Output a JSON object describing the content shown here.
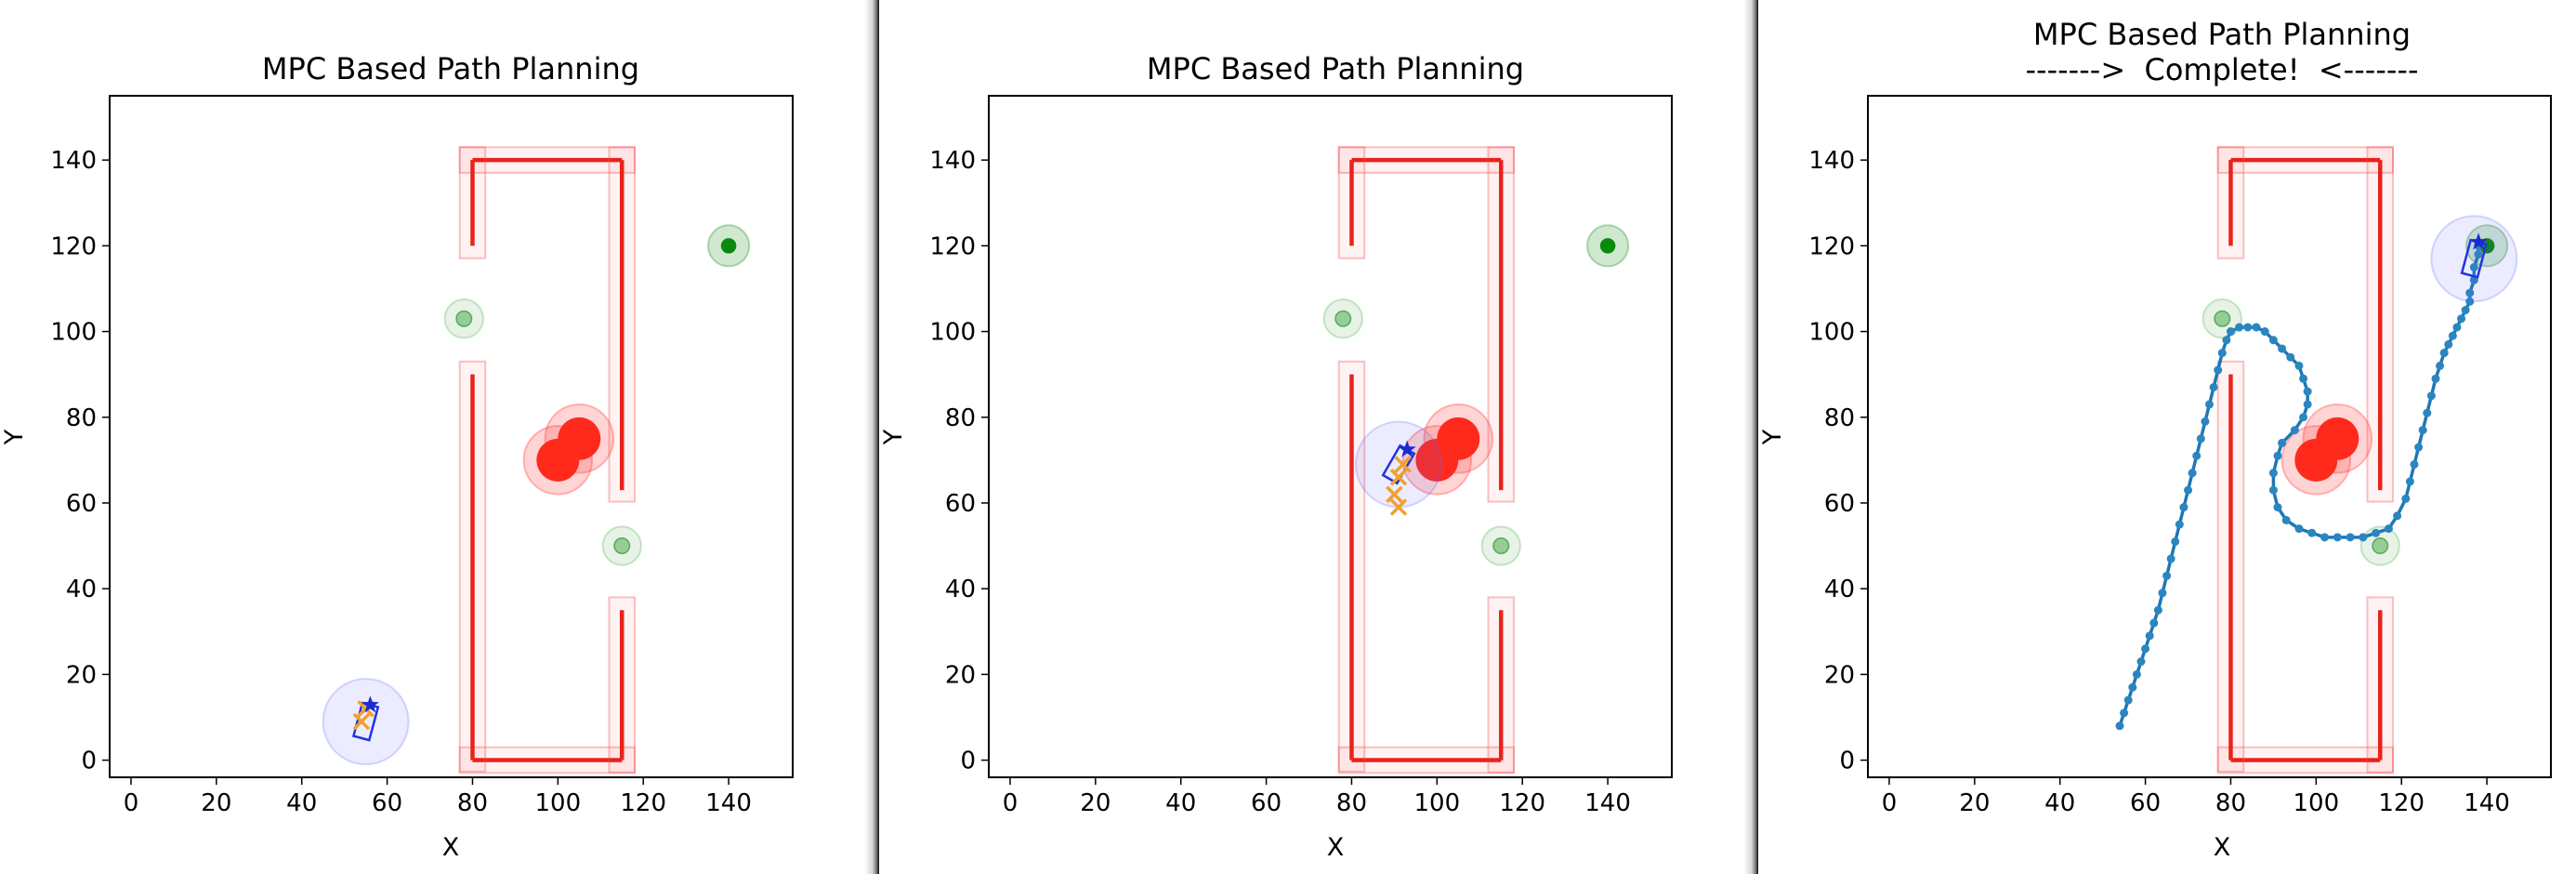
{
  "chart_data": [
    {
      "type": "scatter",
      "title": "MPC Based Path Planning",
      "subtitle": "",
      "xlabel": "X",
      "ylabel": "Y",
      "xlim": [
        -5,
        155
      ],
      "ylim": [
        -4,
        155
      ],
      "xticks": [
        0,
        20,
        40,
        60,
        80,
        100,
        120,
        140
      ],
      "yticks": [
        0,
        20,
        40,
        60,
        80,
        100,
        120,
        140
      ],
      "grid": false,
      "walls": [
        [
          [
            80,
            0
          ],
          [
            115,
            0
          ]
        ],
        [
          [
            80,
            0
          ],
          [
            80,
            90
          ]
        ],
        [
          [
            115,
            0
          ],
          [
            115,
            35
          ]
        ],
        [
          [
            80,
            140
          ],
          [
            115,
            140
          ]
        ],
        [
          [
            80,
            120
          ],
          [
            80,
            140
          ]
        ],
        [
          [
            115,
            63
          ],
          [
            115,
            140
          ]
        ]
      ],
      "goal": {
        "x": 140,
        "y": 120
      },
      "static_obstacles": [
        {
          "x": 78,
          "y": 103
        },
        {
          "x": 115,
          "y": 50
        }
      ],
      "dynamic_obstacles": [
        {
          "x": 100,
          "y": 70
        },
        {
          "x": 105,
          "y": 75
        }
      ],
      "robot": {
        "x": 55,
        "y": 9,
        "heading_deg": 75
      },
      "predicted_marks": [
        {
          "x": 55,
          "y": 12
        },
        {
          "x": 54,
          "y": 9
        }
      ],
      "trajectory": []
    },
    {
      "type": "scatter",
      "title": "MPC Based Path Planning",
      "subtitle": "",
      "xlabel": "X",
      "ylabel": "Y",
      "xlim": [
        -5,
        155
      ],
      "ylim": [
        -4,
        155
      ],
      "xticks": [
        0,
        20,
        40,
        60,
        80,
        100,
        120,
        140
      ],
      "yticks": [
        0,
        20,
        40,
        60,
        80,
        100,
        120,
        140
      ],
      "grid": false,
      "walls": [
        [
          [
            80,
            0
          ],
          [
            115,
            0
          ]
        ],
        [
          [
            80,
            0
          ],
          [
            80,
            90
          ]
        ],
        [
          [
            115,
            0
          ],
          [
            115,
            35
          ]
        ],
        [
          [
            80,
            140
          ],
          [
            115,
            140
          ]
        ],
        [
          [
            80,
            120
          ],
          [
            80,
            140
          ]
        ],
        [
          [
            115,
            63
          ],
          [
            115,
            140
          ]
        ]
      ],
      "goal": {
        "x": 140,
        "y": 120
      },
      "static_obstacles": [
        {
          "x": 78,
          "y": 103
        },
        {
          "x": 115,
          "y": 50
        }
      ],
      "dynamic_obstacles": [
        {
          "x": 100,
          "y": 70
        },
        {
          "x": 105,
          "y": 75
        }
      ],
      "robot": {
        "x": 91,
        "y": 69,
        "heading_deg": 60
      },
      "predicted_marks": [
        {
          "x": 92,
          "y": 69
        },
        {
          "x": 91,
          "y": 66
        },
        {
          "x": 90,
          "y": 62
        },
        {
          "x": 91,
          "y": 59
        }
      ],
      "trajectory": []
    },
    {
      "type": "scatter",
      "title": "MPC Based Path Planning",
      "subtitle": "------->  Complete!  <-------",
      "xlabel": "X",
      "ylabel": "Y",
      "xlim": [
        -5,
        155
      ],
      "ylim": [
        -4,
        155
      ],
      "xticks": [
        0,
        20,
        40,
        60,
        80,
        100,
        120,
        140
      ],
      "yticks": [
        0,
        20,
        40,
        60,
        80,
        100,
        120,
        140
      ],
      "grid": false,
      "walls": [
        [
          [
            80,
            0
          ],
          [
            115,
            0
          ]
        ],
        [
          [
            80,
            0
          ],
          [
            80,
            90
          ]
        ],
        [
          [
            115,
            0
          ],
          [
            115,
            35
          ]
        ],
        [
          [
            80,
            140
          ],
          [
            115,
            140
          ]
        ],
        [
          [
            80,
            120
          ],
          [
            80,
            140
          ]
        ],
        [
          [
            115,
            63
          ],
          [
            115,
            140
          ]
        ]
      ],
      "goal": {
        "x": 140,
        "y": 120
      },
      "static_obstacles": [
        {
          "x": 78,
          "y": 103
        },
        {
          "x": 115,
          "y": 50
        }
      ],
      "dynamic_obstacles": [
        {
          "x": 100,
          "y": 70
        },
        {
          "x": 105,
          "y": 75
        }
      ],
      "robot": {
        "x": 137,
        "y": 117,
        "heading_deg": 75
      },
      "predicted_marks": [],
      "trajectory": [
        [
          54,
          8
        ],
        [
          55,
          11
        ],
        [
          56,
          14
        ],
        [
          57,
          17
        ],
        [
          58,
          20
        ],
        [
          59,
          23
        ],
        [
          60,
          26
        ],
        [
          61,
          29
        ],
        [
          62,
          32
        ],
        [
          63,
          35
        ],
        [
          64,
          39
        ],
        [
          65,
          43
        ],
        [
          66,
          47
        ],
        [
          67,
          51
        ],
        [
          68,
          55
        ],
        [
          69,
          59
        ],
        [
          70,
          63
        ],
        [
          71,
          67
        ],
        [
          72,
          71
        ],
        [
          73,
          75
        ],
        [
          74,
          79
        ],
        [
          75,
          83
        ],
        [
          76,
          87
        ],
        [
          77,
          91
        ],
        [
          78,
          95
        ],
        [
          79,
          98
        ],
        [
          80,
          100
        ],
        [
          82,
          101
        ],
        [
          84,
          101
        ],
        [
          86,
          101
        ],
        [
          88,
          100
        ],
        [
          90,
          98
        ],
        [
          92,
          96
        ],
        [
          94,
          94
        ],
        [
          96,
          92
        ],
        [
          97,
          89
        ],
        [
          98,
          86
        ],
        [
          98,
          83
        ],
        [
          97,
          80
        ],
        [
          95,
          77
        ],
        [
          92,
          74
        ],
        [
          91,
          71
        ],
        [
          90,
          67
        ],
        [
          90,
          63
        ],
        [
          91,
          59
        ],
        [
          93,
          56
        ],
        [
          96,
          54
        ],
        [
          99,
          53
        ],
        [
          102,
          52
        ],
        [
          105,
          52
        ],
        [
          108,
          52
        ],
        [
          111,
          52
        ],
        [
          114,
          53
        ],
        [
          117,
          54
        ],
        [
          119,
          57
        ],
        [
          121,
          61
        ],
        [
          122,
          65
        ],
        [
          123,
          69
        ],
        [
          124,
          73
        ],
        [
          125,
          77
        ],
        [
          126,
          81
        ],
        [
          127,
          85
        ],
        [
          128,
          89
        ],
        [
          129,
          92
        ],
        [
          130,
          95
        ],
        [
          131,
          97
        ],
        [
          132,
          99
        ],
        [
          133,
          101
        ],
        [
          134,
          103
        ],
        [
          135,
          105
        ],
        [
          136,
          107
        ],
        [
          136,
          109
        ],
        [
          137,
          112
        ],
        [
          137,
          115
        ],
        [
          138,
          118
        ],
        [
          138,
          120
        ]
      ]
    }
  ]
}
